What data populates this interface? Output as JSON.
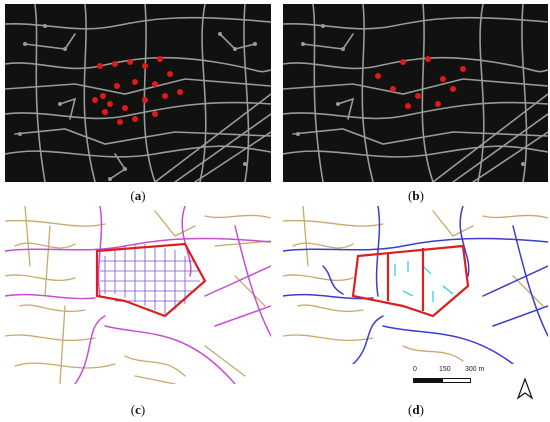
{
  "panels": [
    {
      "id": "a",
      "caption": "a"
    },
    {
      "id": "b",
      "caption": "b"
    },
    {
      "id": "c",
      "caption": "c"
    },
    {
      "id": "d",
      "caption": "d"
    }
  ],
  "scale_bar": {
    "labels": [
      "0",
      "150",
      "300 m"
    ]
  },
  "north_arrow": {
    "label": ""
  },
  "colors": {
    "dark_bg": "#111111",
    "dark_road": "#9a9a9a",
    "node_red": "#e0191a",
    "light_road": "#c7a96a",
    "arterial_magenta": "#c64fd0",
    "main_blue": "#3c3ccf",
    "boundary_red": "#d82020",
    "grid_purple": "#7a4fd8",
    "cyan_tick": "#28c7e8"
  }
}
